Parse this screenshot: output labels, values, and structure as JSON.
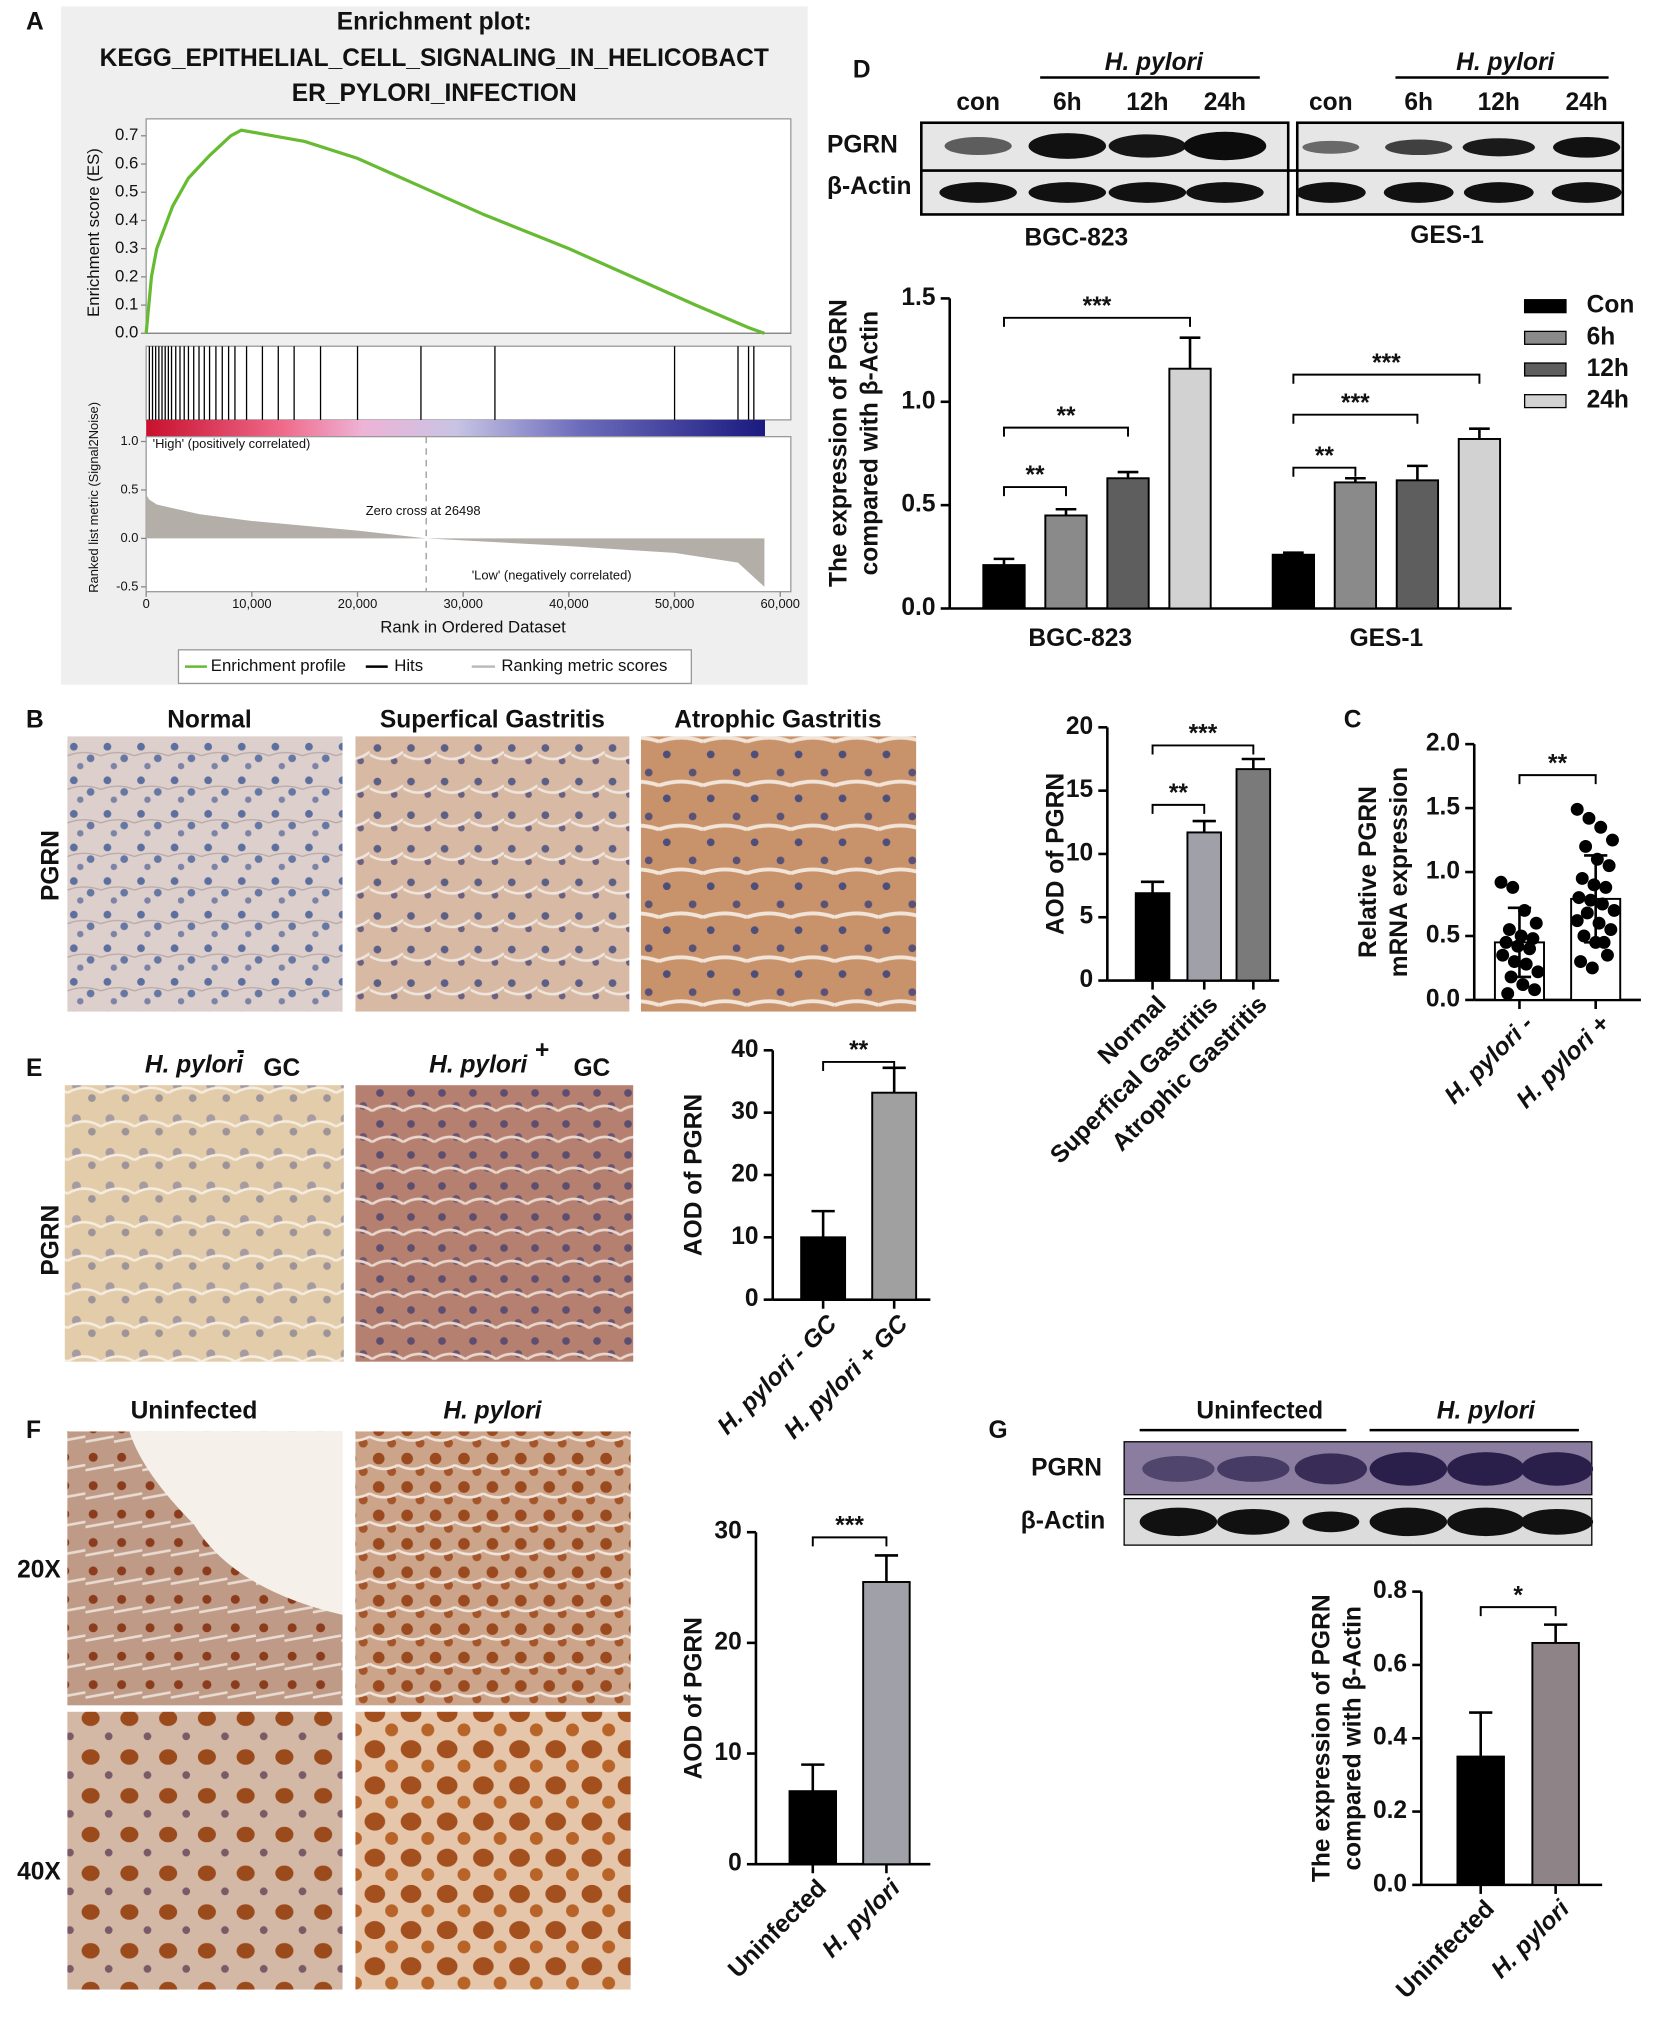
{
  "panel_labels": [
    "A",
    "B",
    "C",
    "D",
    "E",
    "F",
    "G"
  ],
  "micrographs": {
    "B": {
      "titles": [
        "Normal",
        "Superfical Gastritis",
        "Atrophic Gastritis"
      ],
      "row_label": "PGRN"
    },
    "E": {
      "titles": [
        "H. pylori",
        "H. pylori"
      ],
      "signs": [
        "-",
        "+"
      ],
      "suffix": [
        "GC",
        "GC"
      ],
      "row_label": "PGRN"
    },
    "F": {
      "titles": [
        "Uninfected",
        "H. pylori"
      ],
      "row_labels": [
        "20X",
        "40X"
      ]
    }
  },
  "blots": {
    "D": {
      "treatment": [
        "H. pylori",
        "H. pylori"
      ],
      "lanes": [
        "con",
        "6h",
        "12h",
        "24h",
        "con",
        "6h",
        "12h",
        "24h"
      ],
      "rows": [
        "PGRN",
        "β-Actin"
      ],
      "cells": [
        "BGC-823",
        "GES-1"
      ]
    },
    "G": {
      "groups": [
        "Uninfected",
        "H. pylori"
      ],
      "rows": [
        "PGRN",
        "β-Actin"
      ]
    }
  },
  "chart_data": [
    {
      "type": "gsea",
      "title": "Enrichment plot:",
      "subtitle": [
        "KEGG_EPITHELIAL_CELL_SIGNALING_IN_HELICOBACT",
        "ER_PYLORI_INFECTION"
      ],
      "ylabel": "Enrichment score (ES)",
      "xlabel": "Rank in Ordered Dataset",
      "color": "#66bb33",
      "x": [
        0,
        500,
        1000,
        2500,
        4000,
        6000,
        8000,
        9000,
        12000,
        15000,
        20000,
        26000,
        32000,
        40000,
        46000,
        52000,
        57000,
        58500
      ],
      "values": [
        0,
        0.2,
        0.3,
        0.45,
        0.55,
        0.63,
        0.7,
        0.72,
        0.7,
        0.68,
        0.62,
        0.52,
        0.42,
        0.3,
        0.2,
        0.1,
        0.02,
        0
      ],
      "xlim": [
        0,
        61000
      ],
      "xticks": [
        0,
        {
          "value": 10000,
          "label": "10,000"
        },
        {
          "value": 20000,
          "label": "20,000"
        },
        {
          "value": 30000,
          "label": "30,000"
        },
        {
          "value": 40000,
          "label": "40,000"
        },
        {
          "value": 50000,
          "label": "50,000"
        },
        {
          "value": 60000,
          "label": "60,000"
        }
      ],
      "ylim": [
        0,
        0.76
      ],
      "yticks": [
        {
          "value": 0,
          "label": "0.0"
        },
        0.1,
        0.2,
        0.3,
        0.4,
        0.5,
        0.6,
        0.7
      ],
      "hits": [
        300,
        600,
        900,
        1200,
        1500,
        1800,
        2100,
        2400,
        2800,
        3200,
        3600,
        4000,
        4500,
        5000,
        5500,
        6000,
        6600,
        7200,
        7800,
        8400,
        9500,
        11000,
        12500,
        14000,
        16500,
        20000,
        26000,
        33000,
        50000,
        56000,
        57000,
        57500
      ],
      "metric": {
        "ylabel": "Ranked list metric (Signal2Noise)",
        "color": "#b3aea8",
        "ylim": [
          -0.55,
          1.05
        ],
        "yticks": [
          {
            "value": 1,
            "label": "1.0"
          },
          0.5,
          {
            "value": 0,
            "label": "0.0"
          },
          -0.5
        ],
        "x": [
          0,
          300,
          1000,
          5000,
          10000,
          20000,
          26498,
          40000,
          50000,
          56000,
          58000,
          58500
        ],
        "values": [
          0.45,
          0.4,
          0.35,
          0.25,
          0.18,
          0.08,
          0,
          -0.08,
          -0.15,
          -0.25,
          -0.45,
          -0.5
        ]
      },
      "zero_cross": 26498,
      "annotations": [
        "'High' (positively correlated)",
        "Zero cross at 26498",
        "'Low' (negatively correlated)"
      ],
      "legend": [
        "Enrichment profile",
        "Hits",
        "Ranking metric scores"
      ]
    },
    {
      "type": "grouped_bar",
      "categories": [
        "BGC-823",
        "GES-1"
      ],
      "series": [
        {
          "name": "Con",
          "color": "#000000",
          "values": [
            0.21,
            0.26
          ],
          "errors": [
            0.03,
            0.01
          ]
        },
        {
          "name": "6h",
          "color": "#8a8a8a",
          "values": [
            0.45,
            0.61
          ],
          "errors": [
            0.03,
            0.02
          ]
        },
        {
          "name": "12h",
          "color": "#5e5e5e",
          "values": [
            0.63,
            0.62
          ],
          "errors": [
            0.03,
            0.07
          ]
        },
        {
          "name": "24h",
          "color": "#d2d2d2",
          "values": [
            1.16,
            0.82
          ],
          "errors": [
            0.15,
            0.05
          ]
        }
      ],
      "ylim": [
        0,
        1.5
      ],
      "yticks": [
        {
          "value": 0,
          "label": "0.0"
        },
        0.5,
        {
          "value": 1,
          "label": "1.0"
        },
        1.5
      ],
      "ylabel": [
        "The expression of PGRN",
        "compared with β-Actin"
      ],
      "significance": [
        "**",
        "**",
        "***",
        "**",
        "***",
        "***"
      ]
    },
    {
      "type": "bar",
      "categories": [
        "Normal",
        "Superfical Gastritis",
        "Atrophic Gastritis"
      ],
      "values": [
        6.9,
        11.7,
        16.7
      ],
      "errors": [
        0.9,
        0.9,
        0.8
      ],
      "colors": [
        "#000000",
        "#a0a0a8",
        "#7a7a7a"
      ],
      "ylim": [
        0,
        20
      ],
      "yticks": [
        0,
        5,
        10,
        15,
        20
      ],
      "ylabel": "AOD of PGRN",
      "significance": [
        "**",
        "***"
      ]
    },
    {
      "type": "dot_bar",
      "categories": [
        "H. pylori -",
        "H. pylori +"
      ],
      "values": [
        0.45,
        0.79
      ],
      "errors": [
        0.27,
        0.34
      ],
      "colors": [
        "#ffffff",
        "#ffffff"
      ],
      "points": [
        [
          0.92,
          0.88,
          0.7,
          0.6,
          0.55,
          0.5,
          0.48,
          0.45,
          0.42,
          0.4,
          0.35,
          0.3,
          0.28,
          0.22,
          0.18,
          0.12,
          0.08,
          0.05
        ],
        [
          1.49,
          1.42,
          1.35,
          1.25,
          1.2,
          1.1,
          1.05,
          0.95,
          0.9,
          0.88,
          0.8,
          0.78,
          0.75,
          0.7,
          0.68,
          0.6,
          0.55,
          0.5,
          0.45,
          0.35,
          0.3,
          0.25,
          0.45,
          0.62
        ]
      ],
      "ylim": [
        0,
        2
      ],
      "yticks": [
        {
          "value": 0,
          "label": "0.0"
        },
        0.5,
        {
          "value": 1,
          "label": "1.0"
        },
        1.5,
        {
          "value": 2,
          "label": "2.0"
        }
      ],
      "ylabel": [
        "Relative PGRN",
        "mRNA expression"
      ],
      "significance": [
        "**"
      ]
    },
    {
      "type": "bar",
      "categories": [
        "H. pylori - GC",
        "H. pylori + GC"
      ],
      "values": [
        10,
        33.2
      ],
      "errors": [
        4.2,
        4
      ],
      "colors": [
        "#000000",
        "#a0a0a0"
      ],
      "ylim": [
        0,
        40
      ],
      "yticks": [
        0,
        10,
        20,
        30,
        40
      ],
      "ylabel": "AOD of PGRN",
      "significance": [
        "**"
      ]
    },
    {
      "type": "bar",
      "categories": [
        "Uninfected",
        "H. pylori"
      ],
      "values": [
        6.6,
        25.5
      ],
      "errors": [
        2.4,
        2.4
      ],
      "colors": [
        "#000000",
        "#a0a0a8"
      ],
      "ylim": [
        0,
        30
      ],
      "yticks": [
        0,
        10,
        20,
        30
      ],
      "ylabel": "AOD of PGRN",
      "significance": [
        "***"
      ]
    },
    {
      "type": "bar",
      "categories": [
        "Uninfected",
        "H. pylori"
      ],
      "values": [
        0.35,
        0.66
      ],
      "errors": [
        0.12,
        0.05
      ],
      "colors": [
        "#000000",
        "#8e8488"
      ],
      "ylim": [
        0,
        0.8
      ],
      "yticks": [
        {
          "value": 0,
          "label": "0.0"
        },
        0.2,
        0.4,
        0.6,
        0.8
      ],
      "ylabel": [
        "The expression of PGRN",
        "compared with β-Actin"
      ],
      "significance": [
        "*"
      ]
    }
  ]
}
